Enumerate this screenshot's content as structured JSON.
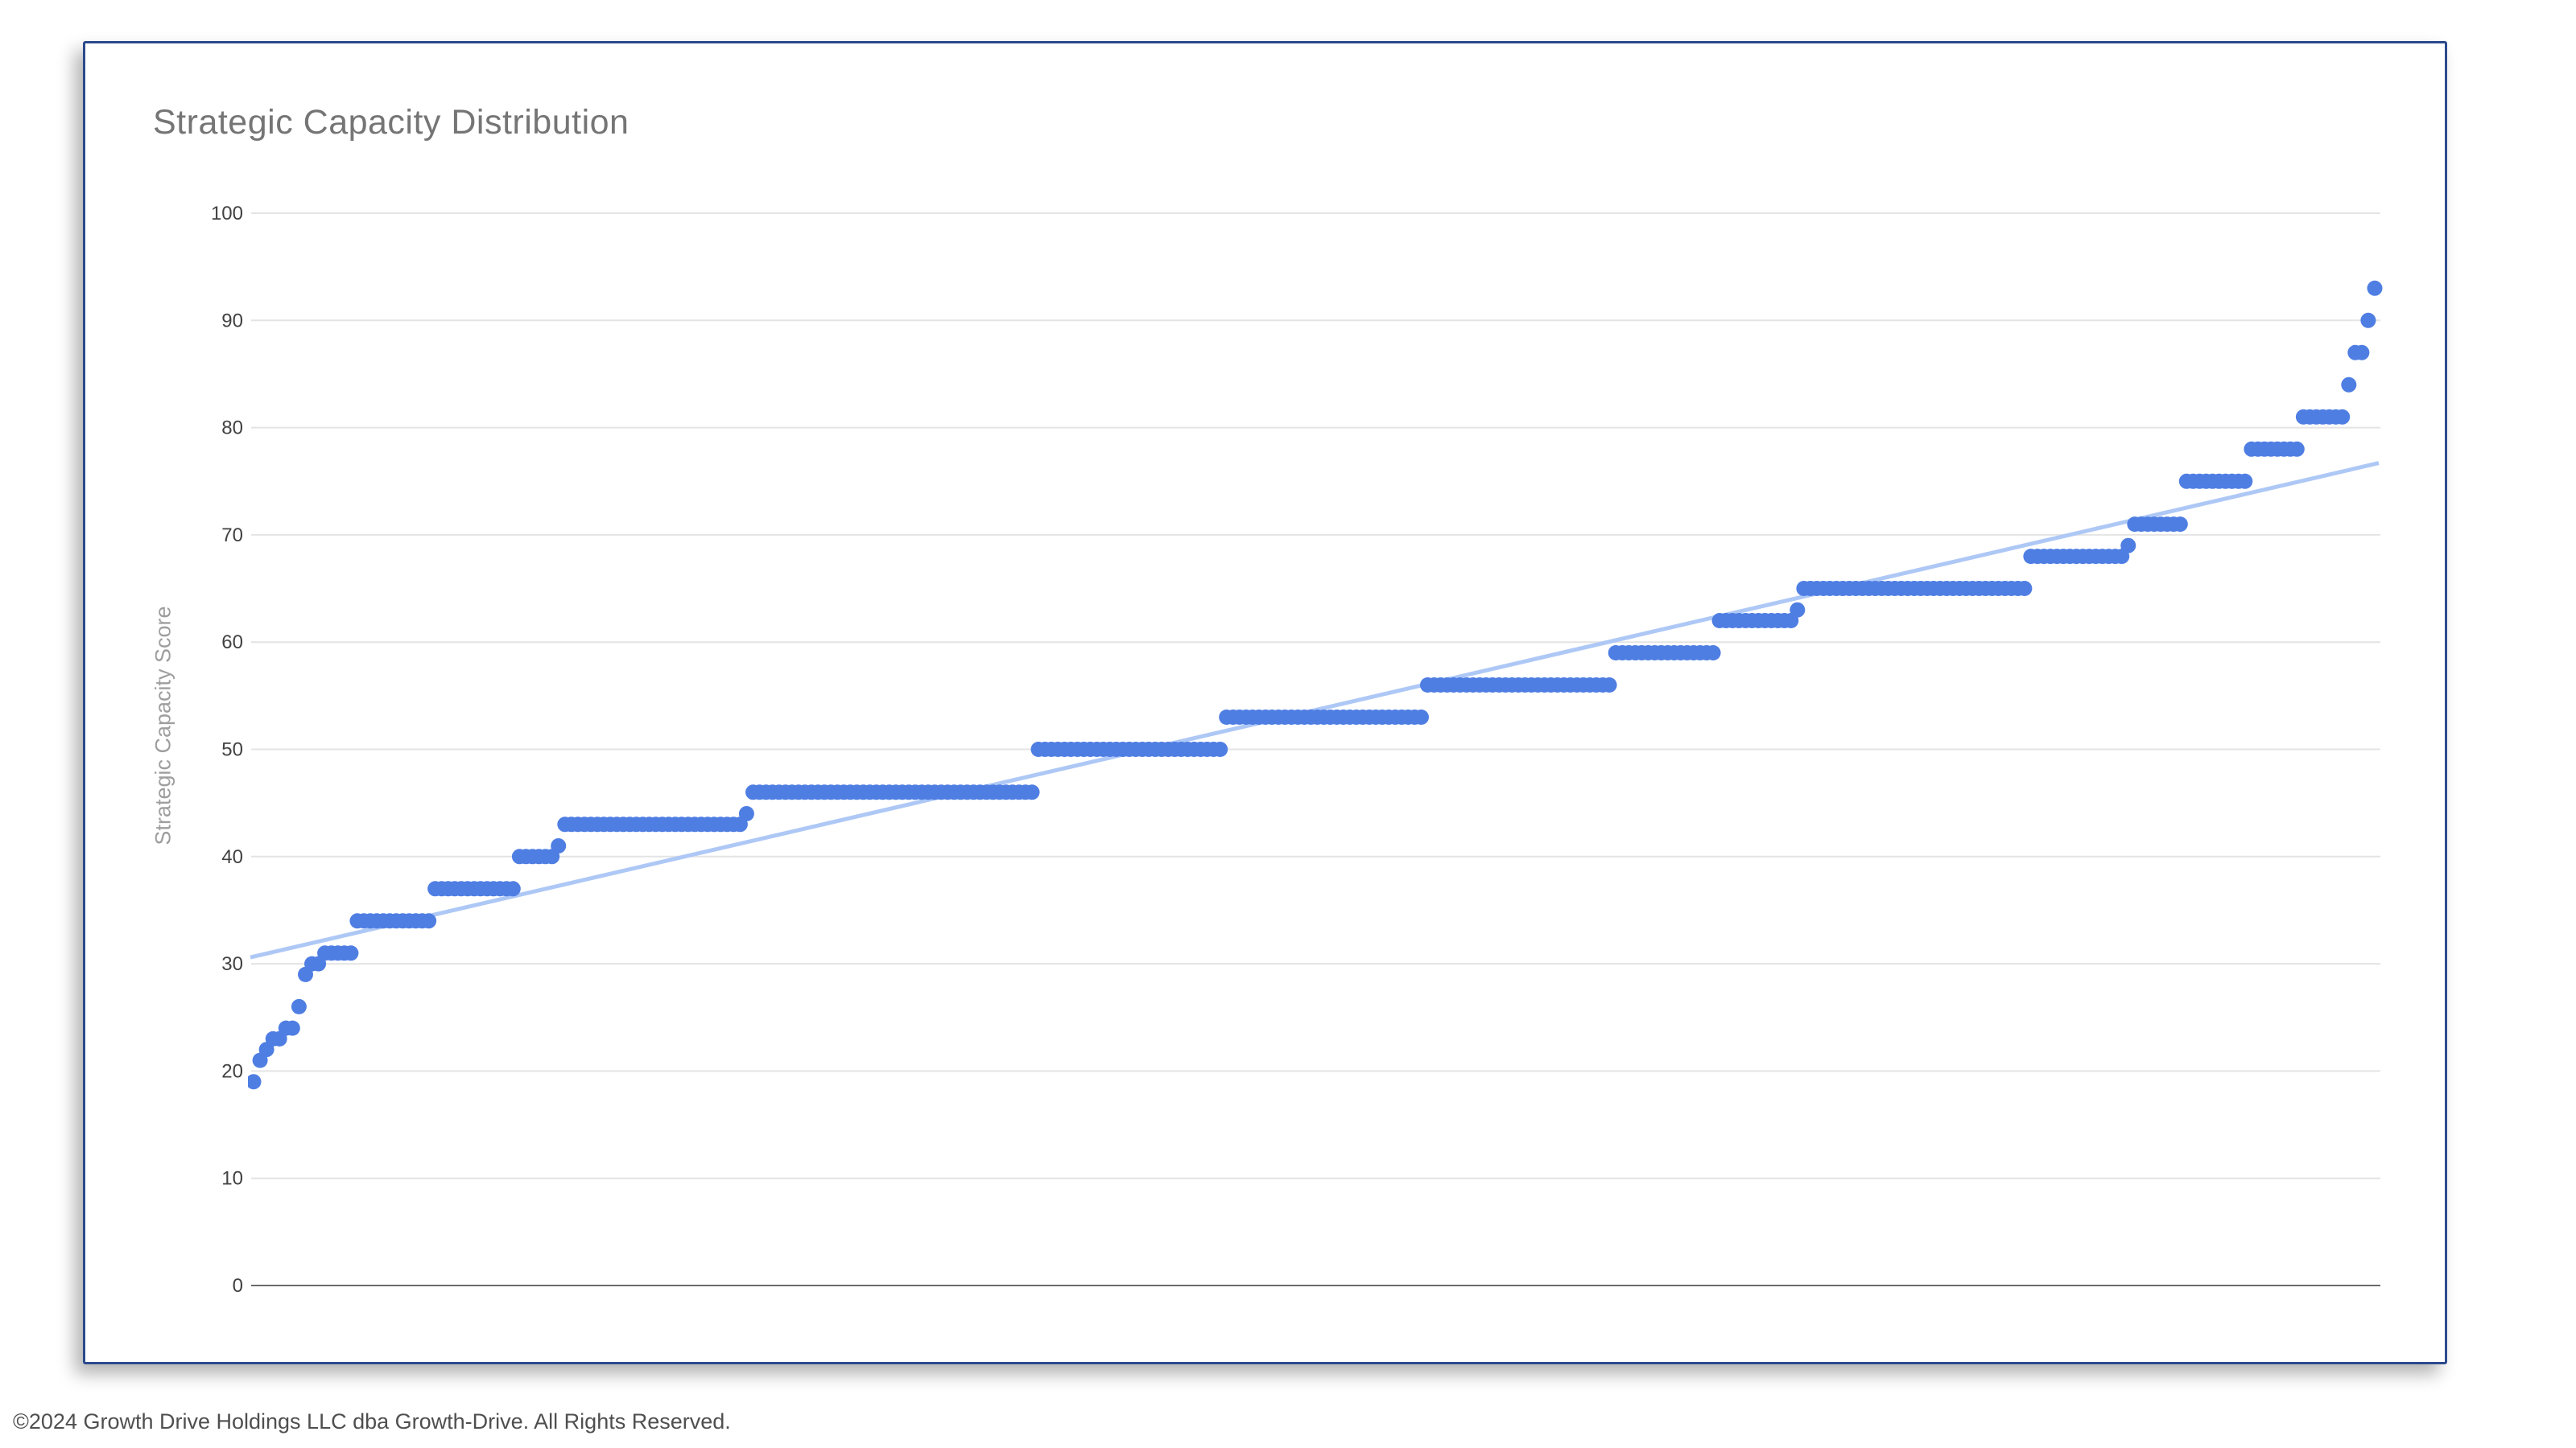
{
  "header": {
    "title": "Strategic Capacity Distribution"
  },
  "footer": {
    "copyright": "©2024 Growth Drive Holdings LLC dba Growth-Drive. All Rights Reserved."
  },
  "chart_data": {
    "type": "scatter",
    "title": "Strategic Capacity Distribution",
    "xlabel": "",
    "ylabel": "Strategic Capacity Score",
    "ylim": [
      0,
      100
    ],
    "ytick_step": 10,
    "ytick_labels": [
      "0",
      "10",
      "20",
      "30",
      "40",
      "50",
      "60",
      "70",
      "80",
      "90",
      "100"
    ],
    "x_axis_labels": "none",
    "grid": true,
    "legend": "none",
    "description": "Sorted ascending distribution of Strategic Capacity Scores; each dot is one observation plotted left-to-right at evenly spaced x positions.",
    "total_points": 328,
    "steps": [
      {
        "value": 19,
        "count": 1
      },
      {
        "value": 21,
        "count": 1
      },
      {
        "value": 22,
        "count": 1
      },
      {
        "value": 23,
        "count": 2
      },
      {
        "value": 24,
        "count": 2
      },
      {
        "value": 26,
        "count": 1
      },
      {
        "value": 29,
        "count": 1
      },
      {
        "value": 30,
        "count": 2
      },
      {
        "value": 31,
        "count": 5
      },
      {
        "value": 34,
        "count": 12
      },
      {
        "value": 37,
        "count": 13
      },
      {
        "value": 40,
        "count": 6
      },
      {
        "value": 41,
        "count": 1
      },
      {
        "value": 43,
        "count": 28
      },
      {
        "value": 44,
        "count": 1
      },
      {
        "value": 46,
        "count": 44
      },
      {
        "value": 50,
        "count": 29
      },
      {
        "value": 53,
        "count": 31
      },
      {
        "value": 56,
        "count": 29
      },
      {
        "value": 59,
        "count": 16
      },
      {
        "value": 62,
        "count": 12
      },
      {
        "value": 63,
        "count": 1
      },
      {
        "value": 65,
        "count": 35
      },
      {
        "value": 68,
        "count": 15
      },
      {
        "value": 69,
        "count": 1
      },
      {
        "value": 71,
        "count": 8
      },
      {
        "value": 75,
        "count": 10
      },
      {
        "value": 78,
        "count": 8
      },
      {
        "value": 81,
        "count": 7
      },
      {
        "value": 84,
        "count": 1
      },
      {
        "value": 87,
        "count": 2
      },
      {
        "value": 90,
        "count": 1
      },
      {
        "value": 93,
        "count": 1
      }
    ],
    "trendline": {
      "type": "linear",
      "start_value": 30.6,
      "end_value": 76.7
    },
    "colors": {
      "point": "#4F7EE3",
      "trendline": "#AEC8F6",
      "gridline": "#E4E4E4",
      "baseline": "#6B6B6B",
      "axis_text": "#424242",
      "title_text": "#757575",
      "axis_title_text": "#9E9E9E",
      "footer_text": "#4F4F4F",
      "card_border": "#2B4A8C",
      "background": "#FFFFFF"
    }
  }
}
